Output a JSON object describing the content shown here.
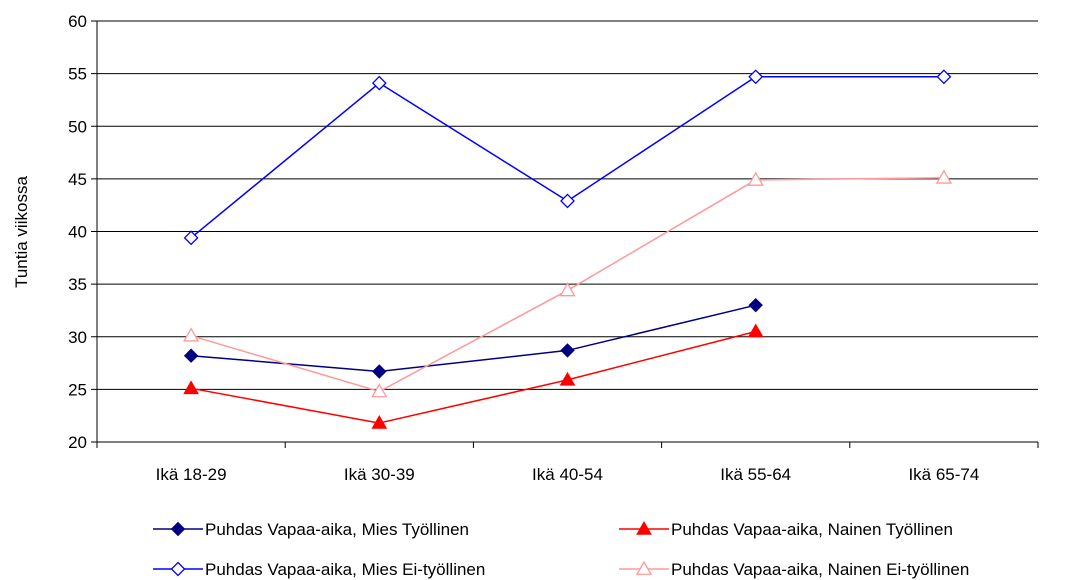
{
  "chart_data": {
    "type": "line",
    "title": "",
    "xlabel": "",
    "ylabel": "Tuntia viikossa",
    "ylim": [
      20,
      60
    ],
    "yticks": [
      20,
      25,
      30,
      35,
      40,
      45,
      50,
      55,
      60
    ],
    "grid": "horizontal",
    "legend_position": "bottom",
    "categories": [
      "Ikä 18-29",
      "Ikä 30-39",
      "Ikä 40-54",
      "Ikä 55-64",
      "Ikä 65-74"
    ],
    "series": [
      {
        "name": "Puhdas Vapaa-aika, Mies Työllinen",
        "color": "#000080",
        "marker": "diamond-filled",
        "values": [
          28.2,
          26.7,
          28.7,
          33.0,
          null
        ]
      },
      {
        "name": "Puhdas Vapaa-aika, Nainen Työllinen",
        "color": "#ff0000",
        "marker": "triangle-filled",
        "values": [
          25.1,
          21.8,
          25.9,
          30.5,
          null
        ]
      },
      {
        "name": "Puhdas Vapaa-aika, Mies Ei-työllinen",
        "color": "#0000ff",
        "marker": "diamond-open",
        "values": [
          39.4,
          54.1,
          42.9,
          54.7,
          54.7
        ]
      },
      {
        "name": "Puhdas Vapaa-aika, Nainen Ei-työllinen",
        "color": "#ff9999",
        "marker": "triangle-open",
        "values": [
          30.1,
          24.8,
          34.4,
          44.9,
          45.1
        ]
      }
    ]
  }
}
